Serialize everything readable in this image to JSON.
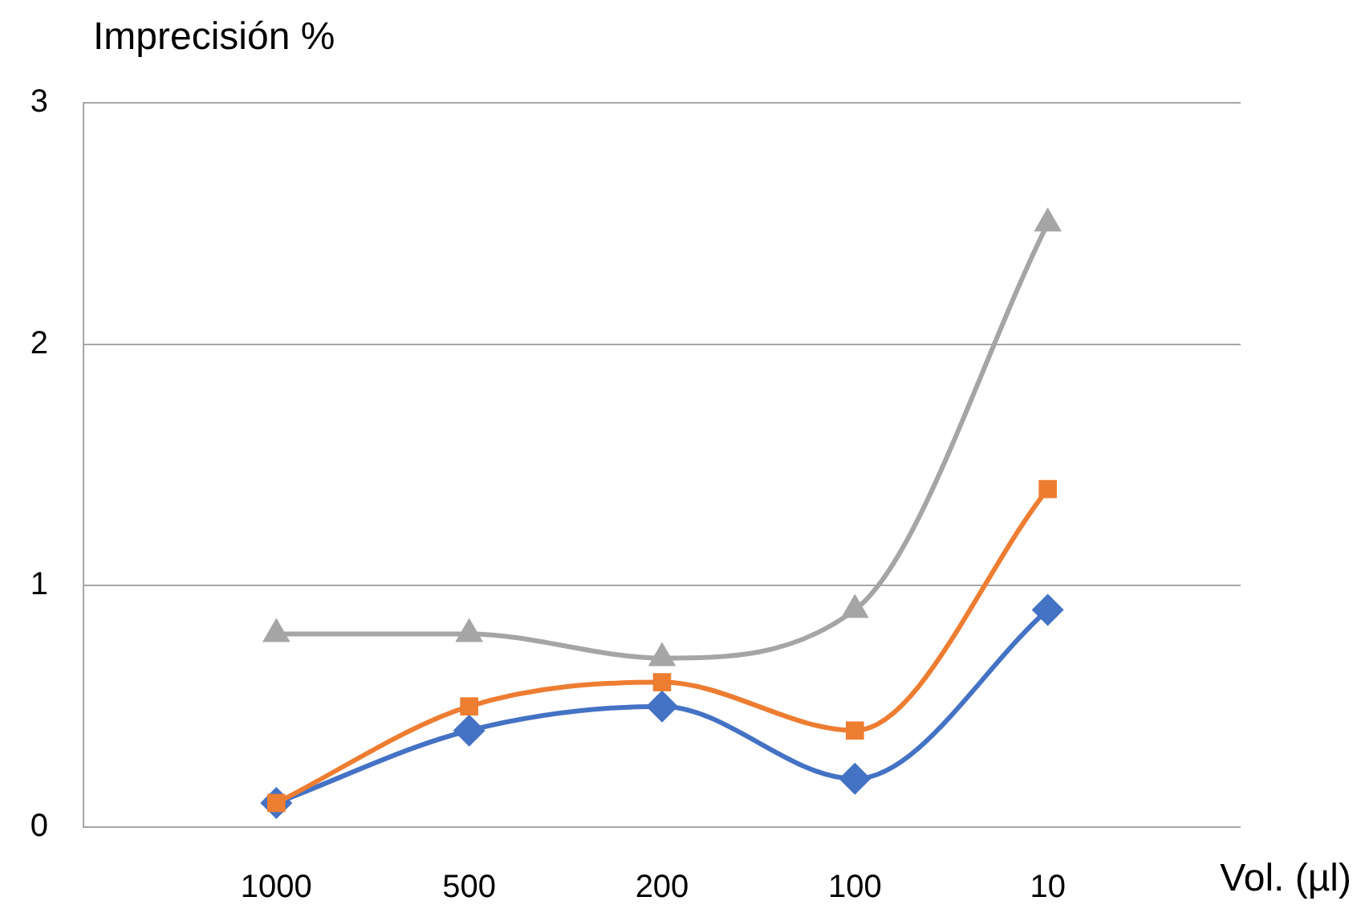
{
  "chart_data": {
    "type": "line",
    "ylabel": "Imprecisión %",
    "xlabel": "Vol. (µl)",
    "categories": [
      null,
      "1000",
      "500",
      "200",
      "100",
      "10",
      null
    ],
    "series": [
      {
        "color": "#4472c4",
        "marker": "diamond",
        "values": [
          null,
          0.1,
          0.4,
          0.5,
          0.2,
          0.9,
          null
        ]
      },
      {
        "color": "#ed7d31",
        "marker": "square",
        "values": [
          null,
          0.1,
          0.5,
          0.6,
          0.4,
          1.4,
          null
        ]
      },
      {
        "color": "#a5a5a5",
        "marker": "triangle",
        "values": [
          null,
          0.8,
          0.8,
          0.7,
          0.9,
          2.5,
          null
        ]
      }
    ],
    "ylim": [
      0,
      3
    ],
    "yticks": [
      0,
      1,
      2,
      3
    ],
    "grid": "y",
    "legend": false
  }
}
